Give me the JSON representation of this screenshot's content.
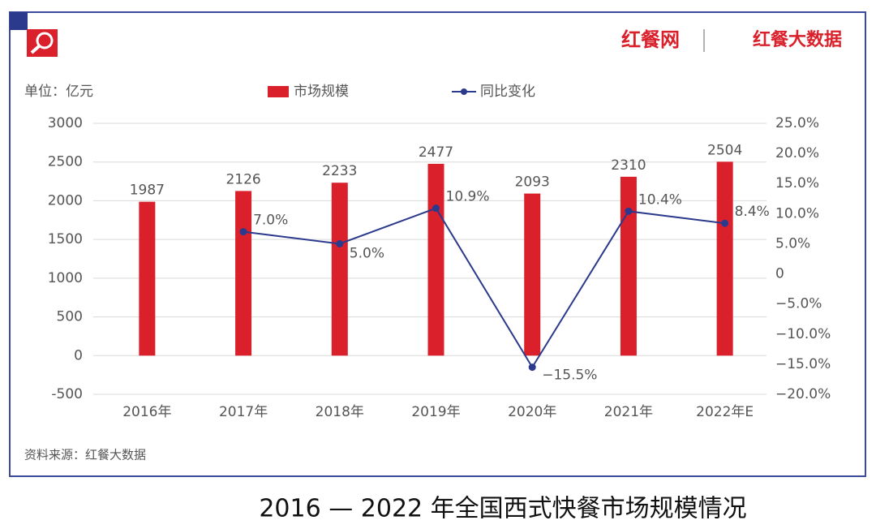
{
  "chart_data": {
    "type": "bar-line",
    "title": "2016 — 2022 年全国西式快餐市场规模情况",
    "unit_label": "单位：亿元",
    "source": "资料来源：红餐大数据",
    "logos": [
      "红餐网",
      "红餐大数据"
    ],
    "categories": [
      "2016年",
      "2017年",
      "2018年",
      "2019年",
      "2020年",
      "2021年",
      "2022年E"
    ],
    "series": [
      {
        "name": "市场规模",
        "color": "#d9202b",
        "type": "bar",
        "values": [
          1987,
          2126,
          2233,
          2477,
          2093,
          2310,
          2504
        ]
      },
      {
        "name": "同比变化",
        "color": "#2b3a8c",
        "type": "line",
        "axis": "y2",
        "values": [
          null,
          7.0,
          5.0,
          10.9,
          -15.5,
          10.4,
          8.4
        ],
        "value_labels": [
          null,
          "7.0%",
          "5.0%",
          "10.9%",
          "−15.5%",
          "10.4%",
          "8.4%"
        ]
      }
    ],
    "ylim": [
      -500,
      3000
    ],
    "yticks": [
      -500,
      0,
      500,
      1000,
      1500,
      2000,
      2500,
      3000
    ],
    "y2lim": [
      -20,
      25
    ],
    "y2ticks": [
      {
        "value": -20,
        "label": "−20.0%"
      },
      {
        "value": -15,
        "label": "−15.0%"
      },
      {
        "value": -10,
        "label": "−10.0%"
      },
      {
        "value": -5,
        "label": "−5.0%"
      },
      0,
      {
        "value": 5,
        "label": "5.0%"
      },
      {
        "value": 10,
        "label": "10.0%"
      },
      {
        "value": 15,
        "label": "15.0%"
      },
      {
        "value": 20,
        "label": "20.0%"
      },
      {
        "value": 25,
        "label": "25.0%"
      }
    ],
    "grid": true
  }
}
